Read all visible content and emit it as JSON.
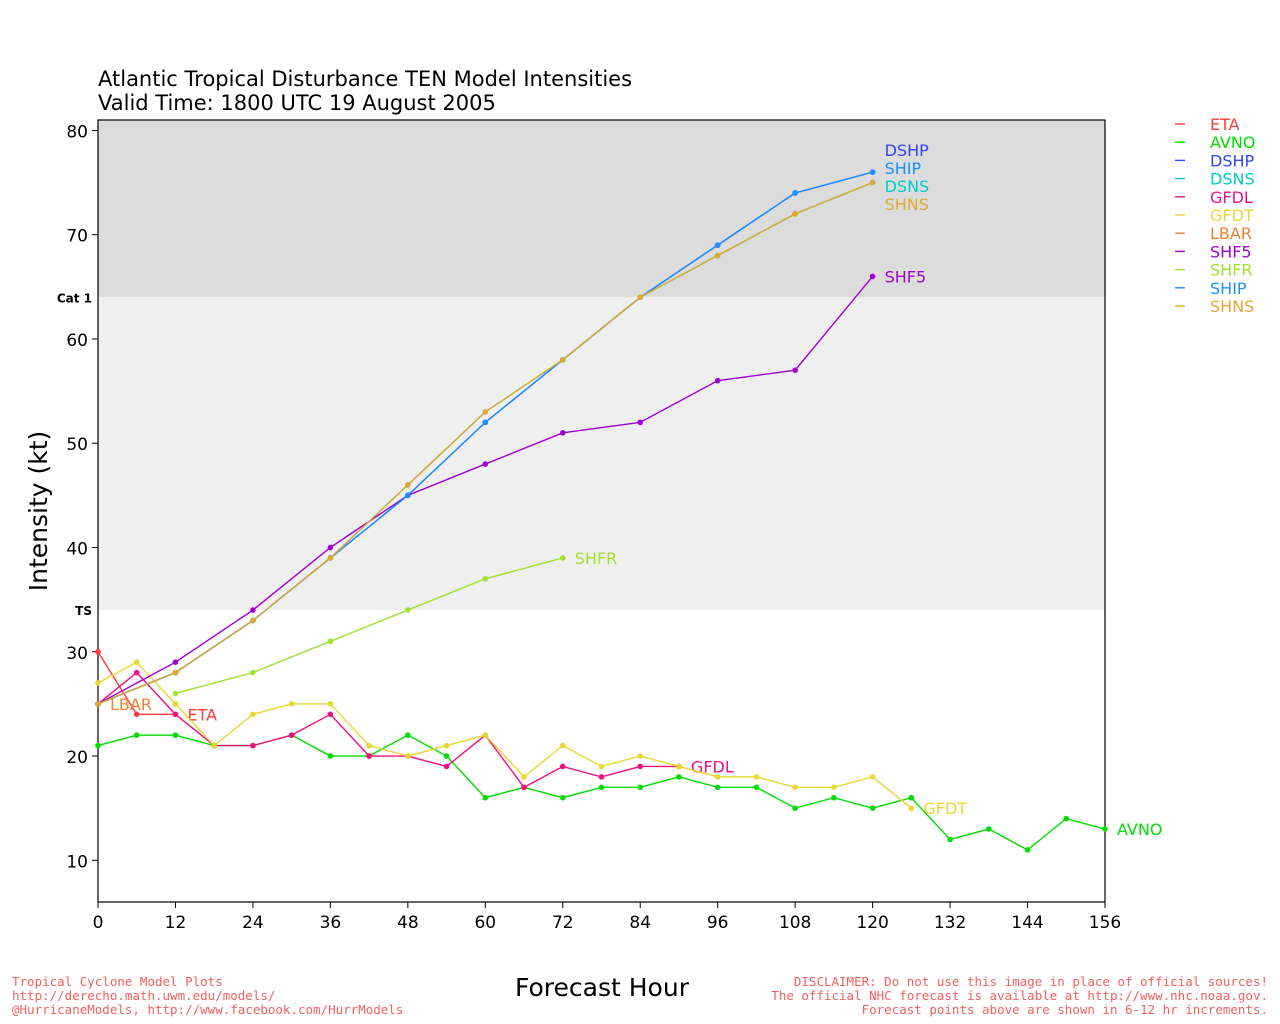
{
  "chart_data": {
    "type": "line",
    "title": "Atlantic Tropical Disturbance TEN Model Intensities",
    "subtitle": "Valid Time: 1800 UTC 19 August 2005",
    "xlabel": "Forecast Hour",
    "ylabel": "Intensity (kt)",
    "xlim": [
      0,
      156
    ],
    "ylim": [
      6,
      81
    ],
    "xticks": [
      0,
      12,
      24,
      36,
      48,
      60,
      72,
      84,
      96,
      108,
      120,
      132,
      144,
      156
    ],
    "yticks": [
      10,
      20,
      30,
      40,
      50,
      60,
      70,
      80
    ],
    "bands": [
      {
        "label": "TS",
        "from": 34,
        "to": 64,
        "color": "#efefef"
      },
      {
        "label": "Cat 1",
        "from": 64,
        "to": 81,
        "color": "#dcdcdc"
      }
    ],
    "legend_position": "right",
    "series": [
      {
        "name": "ETA",
        "color": "#ff3838",
        "x": [
          0,
          6,
          12
        ],
        "y": [
          30,
          24,
          24
        ]
      },
      {
        "name": "AVNO",
        "color": "#00dd00",
        "x": [
          0,
          6,
          12,
          18,
          24,
          30,
          36,
          42,
          48,
          54,
          60,
          66,
          72,
          78,
          84,
          90,
          96,
          102,
          108,
          114,
          120,
          126,
          132,
          138,
          144,
          150,
          156
        ],
        "y": [
          21,
          22,
          22,
          21,
          21,
          22,
          20,
          20,
          22,
          20,
          16,
          17,
          16,
          17,
          17,
          18,
          17,
          17,
          15,
          16,
          15,
          16,
          12,
          13,
          11,
          14,
          13
        ]
      },
      {
        "name": "DSHP",
        "color": "#3344ff",
        "x": [
          0,
          12,
          24,
          36,
          48,
          60,
          72,
          84,
          96,
          108,
          120
        ],
        "y": [
          25,
          28,
          33,
          39,
          45,
          52,
          58,
          64,
          69,
          74,
          76
        ]
      },
      {
        "name": "DSNS",
        "color": "#00cccc",
        "x": [
          0,
          12,
          24,
          36,
          48,
          60,
          72,
          84,
          96,
          108,
          120
        ],
        "y": [
          25,
          28,
          33,
          39,
          46,
          53,
          58,
          64,
          68,
          72,
          75
        ]
      },
      {
        "name": "GFDL",
        "color": "#ee1080",
        "x": [
          0,
          6,
          12,
          18,
          24,
          30,
          36,
          42,
          48,
          54,
          60,
          66,
          72,
          78,
          84,
          90
        ],
        "y": [
          25,
          28,
          24,
          21,
          21,
          22,
          24,
          20,
          20,
          19,
          22,
          17,
          19,
          18,
          19,
          19
        ]
      },
      {
        "name": "GFDT",
        "color": "#e8d830",
        "x": [
          0,
          6,
          12,
          18,
          24,
          30,
          36,
          42,
          48,
          54,
          60,
          66,
          72,
          78,
          84,
          90,
          96,
          102,
          108,
          114,
          120,
          126
        ],
        "y": [
          27,
          29,
          25,
          21,
          24,
          25,
          25,
          21,
          20,
          21,
          22,
          18,
          21,
          19,
          20,
          19,
          18,
          18,
          17,
          17,
          18,
          15
        ]
      },
      {
        "name": "LBAR",
        "color": "#f08030",
        "x": [
          0
        ],
        "y": [
          25
        ]
      },
      {
        "name": "SHF5",
        "color": "#a000d0",
        "x": [
          0,
          12,
          24,
          36,
          48,
          60,
          72,
          84,
          96,
          108,
          120
        ],
        "y": [
          25,
          29,
          34,
          40,
          45,
          48,
          51,
          52,
          56,
          57,
          66
        ]
      },
      {
        "name": "SHFR",
        "color": "#a0e030",
        "x": [
          12,
          24,
          36,
          48,
          60,
          72
        ],
        "y": [
          26,
          28,
          31,
          34,
          37,
          39
        ]
      },
      {
        "name": "SHIP",
        "color": "#1a90ff",
        "x": [
          0,
          12,
          24,
          36,
          48,
          60,
          72,
          84,
          96,
          108,
          120
        ],
        "y": [
          25,
          28,
          33,
          39,
          45,
          52,
          58,
          64,
          69,
          74,
          76
        ]
      },
      {
        "name": "SHNS",
        "color": "#e0a830",
        "x": [
          0,
          12,
          24,
          36,
          48,
          60,
          72,
          84,
          96,
          108,
          120
        ],
        "y": [
          25,
          28,
          33,
          39,
          46,
          53,
          58,
          64,
          68,
          72,
          75
        ]
      }
    ]
  },
  "footer": {
    "left": [
      "Tropical Cyclone Model Plots",
      "http://derecho.math.uwm.edu/models/",
      "@HurricaneModels, http://www.facebook.com/HurrModels"
    ],
    "right": [
      "DISCLAIMER: Do not use this image in place of official sources!",
      "The official NHC forecast is available at http://www.nhc.noaa.gov.",
      "Forecast points above are shown in 6-12 hr increments."
    ]
  }
}
